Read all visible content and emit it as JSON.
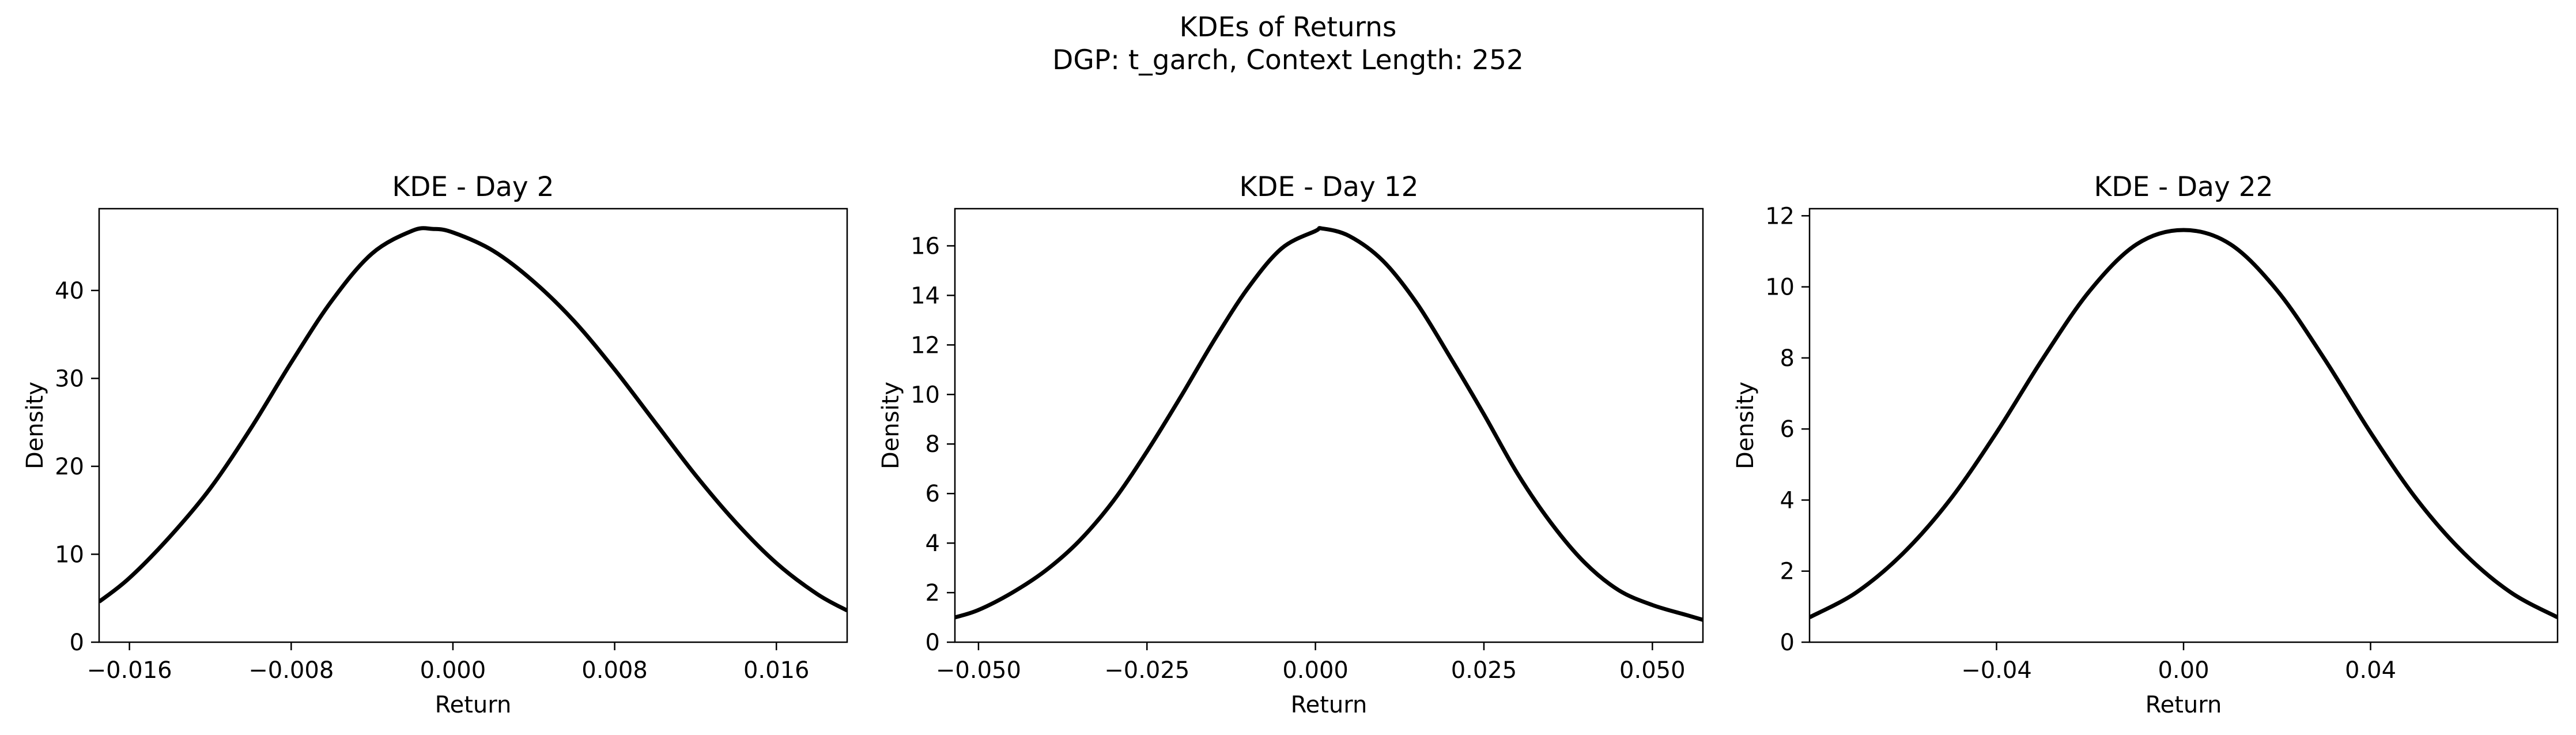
{
  "figure": {
    "title_line1": "KDEs of Returns",
    "title_line2": "DGP: t_garch, Context Length: 252",
    "line_color": "#000000",
    "background": "#ffffff"
  },
  "chart_data": [
    {
      "type": "line",
      "title": "KDE - Day 2",
      "xlabel": "Return",
      "ylabel": "Density",
      "xlim": [
        -0.0175,
        0.0195
      ],
      "ylim": [
        0,
        49.3
      ],
      "xticks": [
        -0.016,
        -0.008,
        0.0,
        0.008,
        0.016
      ],
      "xtick_labels": [
        "−0.016",
        "−0.008",
        "0.000",
        "0.008",
        "0.016"
      ],
      "yticks": [
        0,
        10,
        20,
        30,
        40
      ],
      "ytick_labels": [
        "0",
        "10",
        "20",
        "30",
        "40"
      ],
      "grid": false,
      "legend": "none",
      "series": [
        {
          "x": [
            -0.0175,
            -0.016,
            -0.014,
            -0.012,
            -0.01,
            -0.008,
            -0.006,
            -0.004,
            -0.002,
            -0.001,
            0.0,
            0.002,
            0.004,
            0.006,
            0.008,
            0.01,
            0.012,
            0.014,
            0.016,
            0.018,
            0.0195
          ],
          "y": [
            4.6,
            7.3,
            12.0,
            17.5,
            24.3,
            31.8,
            38.8,
            44.2,
            46.8,
            47.0,
            46.6,
            44.5,
            41.0,
            36.5,
            31.0,
            25.0,
            19.0,
            13.6,
            9.0,
            5.5,
            3.6
          ]
        }
      ]
    },
    {
      "type": "line",
      "title": "KDE - Day 12",
      "xlabel": "Return",
      "ylabel": "Density",
      "xlim": [
        -0.0535,
        0.0575
      ],
      "ylim": [
        0,
        17.5
      ],
      "xticks": [
        -0.05,
        -0.025,
        0.0,
        0.025,
        0.05
      ],
      "xtick_labels": [
        "−0.050",
        "−0.025",
        "0.000",
        "0.025",
        "0.050"
      ],
      "yticks": [
        0,
        2,
        4,
        6,
        8,
        10,
        12,
        14,
        16
      ],
      "ytick_labels": [
        "0",
        "2",
        "4",
        "6",
        "8",
        "10",
        "12",
        "14",
        "16"
      ],
      "grid": false,
      "legend": "none",
      "series": [
        {
          "x": [
            -0.0535,
            -0.05,
            -0.045,
            -0.04,
            -0.035,
            -0.03,
            -0.025,
            -0.02,
            -0.015,
            -0.01,
            -0.005,
            0.0,
            0.001,
            0.005,
            0.01,
            0.015,
            0.02,
            0.025,
            0.03,
            0.035,
            0.04,
            0.045,
            0.05,
            0.055,
            0.0575
          ],
          "y": [
            1.0,
            1.3,
            2.0,
            2.9,
            4.1,
            5.7,
            7.7,
            9.9,
            12.2,
            14.3,
            15.9,
            16.6,
            16.7,
            16.4,
            15.4,
            13.7,
            11.5,
            9.2,
            6.8,
            4.8,
            3.2,
            2.1,
            1.5,
            1.1,
            0.9
          ]
        }
      ]
    },
    {
      "type": "line",
      "title": "KDE - Day 22",
      "xlabel": "Return",
      "ylabel": "Density",
      "xlim": [
        -0.08,
        0.08
      ],
      "ylim": [
        0,
        12.2
      ],
      "xticks": [
        -0.04,
        0.0,
        0.04
      ],
      "xtick_labels": [
        "−0.04",
        "0.00",
        "0.04"
      ],
      "yticks": [
        0,
        2,
        4,
        6,
        8,
        10,
        12
      ],
      "ytick_labels": [
        "0",
        "2",
        "4",
        "6",
        "8",
        "10",
        "12"
      ],
      "grid": false,
      "legend": "none",
      "series": [
        {
          "x": [
            -0.08,
            -0.07,
            -0.06,
            -0.05,
            -0.04,
            -0.03,
            -0.02,
            -0.01,
            0.0,
            0.01,
            0.02,
            0.03,
            0.04,
            0.05,
            0.06,
            0.07,
            0.08
          ],
          "y": [
            0.7,
            1.4,
            2.5,
            4.0,
            5.9,
            8.0,
            9.9,
            11.2,
            11.6,
            11.2,
            9.9,
            8.0,
            5.9,
            4.0,
            2.5,
            1.4,
            0.7
          ]
        }
      ]
    }
  ]
}
